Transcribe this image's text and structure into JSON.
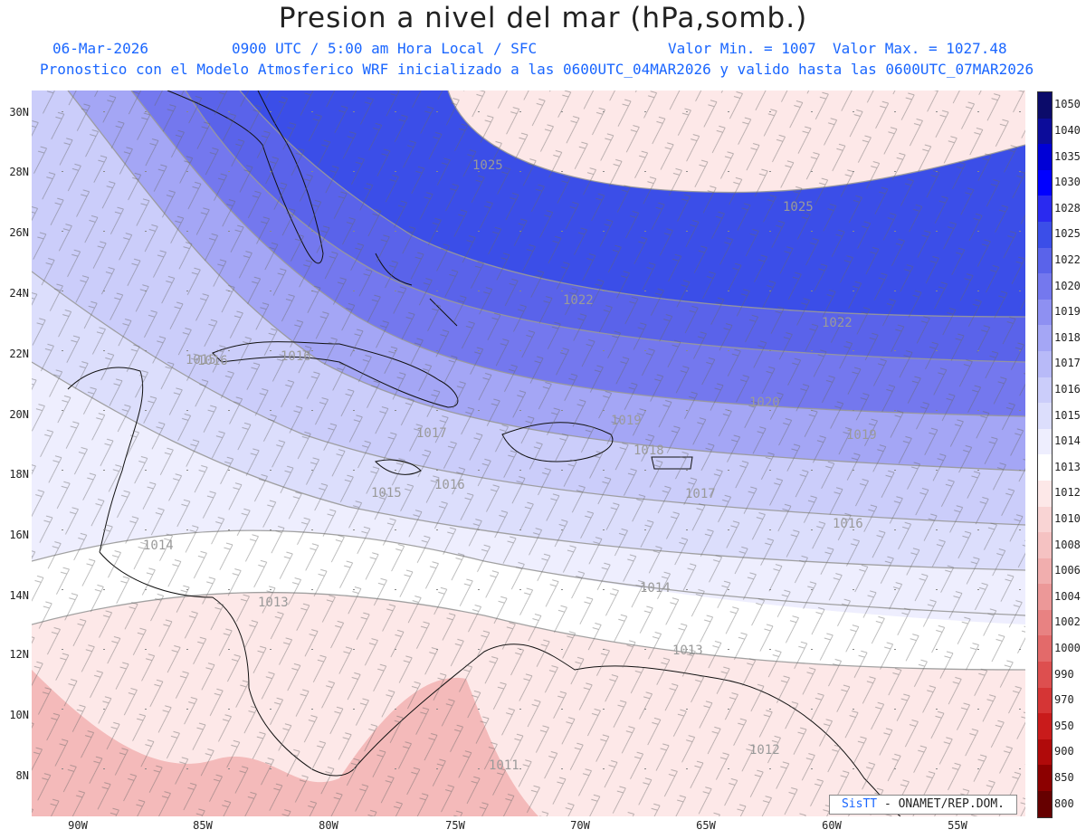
{
  "header": {
    "title": "Presion a nivel del mar (hPa,somb.)",
    "date": "06-Mar-2026",
    "time": "0900 UTC / 5:00 am Hora Local / SFC",
    "min": "Valor Min. = 1007",
    "max": "Valor Max. = 1027.48",
    "forecast": "Pronostico con el Modelo Atmosferico WRF inicializado a las 0600UTC_04MAR2026 y valido hasta las  0600UTC_07MAR2026"
  },
  "axes": {
    "lat": [
      "30N",
      "28N",
      "26N",
      "24N",
      "22N",
      "20N",
      "18N",
      "16N",
      "14N",
      "12N",
      "10N",
      "8N"
    ],
    "lon": [
      "90W",
      "85W",
      "80W",
      "75W",
      "70W",
      "65W",
      "60W",
      "55W"
    ]
  },
  "colorbar": {
    "levels": [
      "1050",
      "1040",
      "1035",
      "1030",
      "1028",
      "1025",
      "1022",
      "1020",
      "1019",
      "1018",
      "1017",
      "1016",
      "1015",
      "1014",
      "1013",
      "1012",
      "1010",
      "1008",
      "1006",
      "1004",
      "1002",
      "1000",
      "990",
      "970",
      "950",
      "900",
      "850",
      "800"
    ],
    "colors": [
      "#0b0b6a",
      "#0c0c9a",
      "#0000d6",
      "#0000ff",
      "#2a2af0",
      "#3b4ee8",
      "#5a63ea",
      "#7478ee",
      "#8e90f2",
      "#a4a6f5",
      "#b8baf8",
      "#cbcdfa",
      "#dcdefc",
      "#eeeefe",
      "#ffffff",
      "#fde8e8",
      "#f9d4d4",
      "#f5c2c2",
      "#f1aeae",
      "#ec9898",
      "#e88282",
      "#e36a6a",
      "#dd4f4f",
      "#d53535",
      "#c91b1b",
      "#b00a0a",
      "#8c0000",
      "#660000"
    ]
  },
  "contours": {
    "labels": [
      "1025",
      "1025",
      "1022",
      "1022",
      "1020",
      "1019",
      "1019",
      "1018",
      "1017",
      "1017",
      "1016",
      "1016",
      "1016",
      "1015",
      "1016",
      "1015",
      "1014",
      "1014",
      "1013",
      "1013",
      "1012",
      "1011"
    ]
  },
  "credit": {
    "sis": "SisTT",
    "org": " - ONAMET/REP.DOM."
  }
}
